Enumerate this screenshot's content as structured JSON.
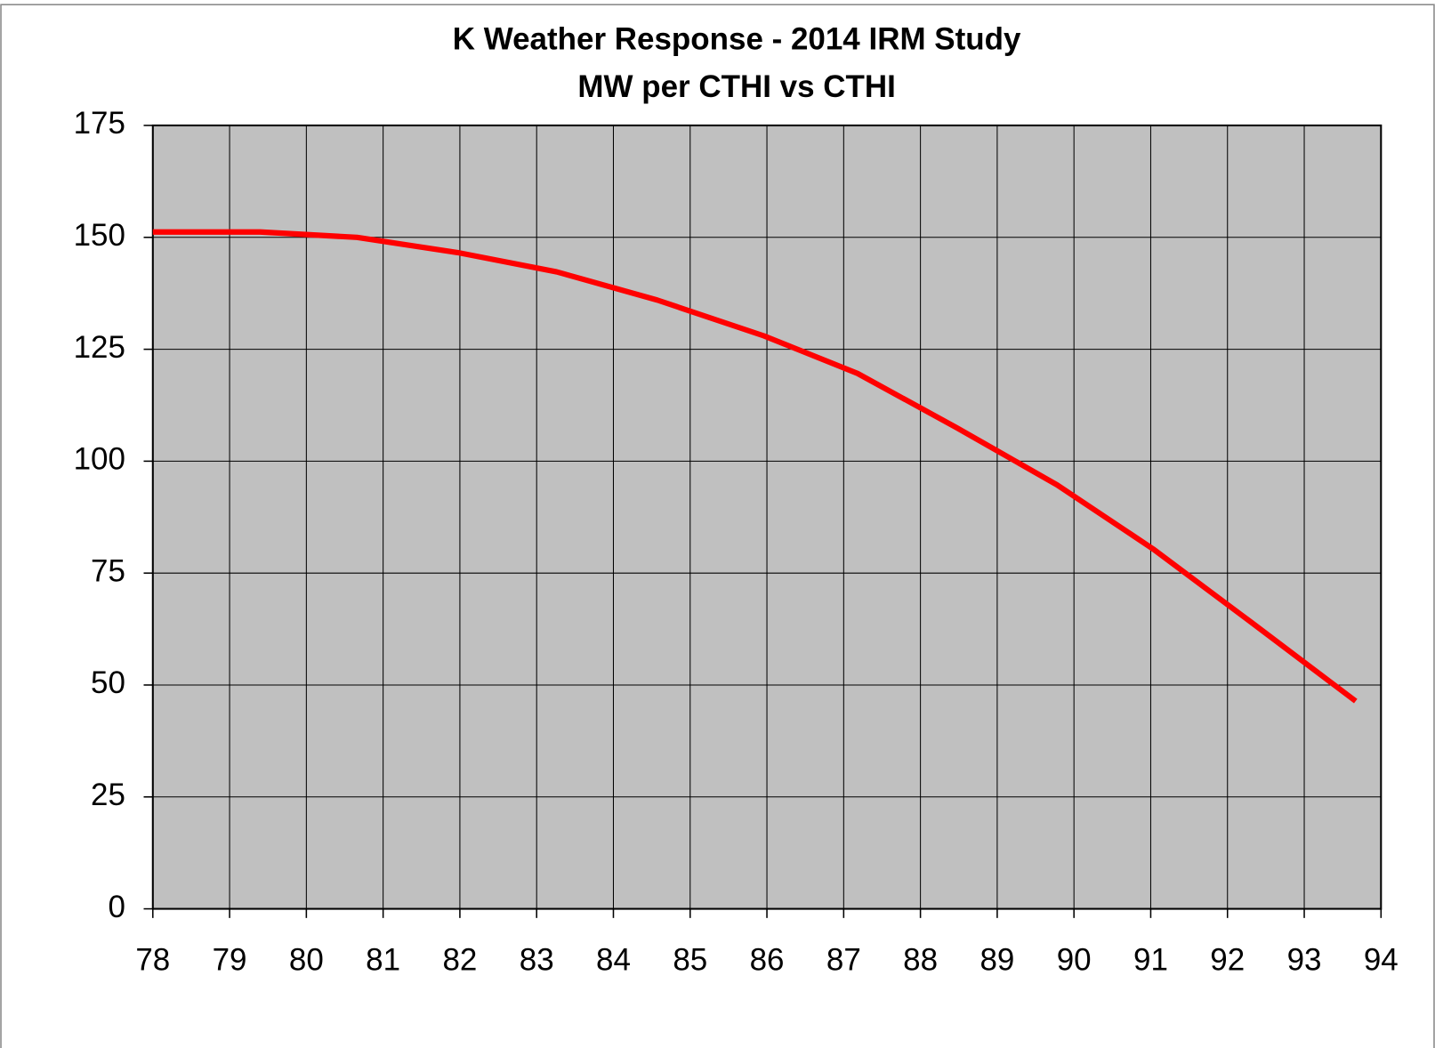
{
  "chart_data": {
    "type": "line",
    "title": "K Weather Response - 2014 IRM Study",
    "subtitle": "MW per CTHI vs CTHI",
    "x": [
      78,
      79.4,
      80.66,
      81.97,
      83.26,
      84.57,
      85.96,
      87.18,
      88.47,
      89.78,
      91.03,
      92.31,
      93.67
    ],
    "values": [
      151.2,
      151.2,
      150,
      146.6,
      142.3,
      136,
      128,
      119.6,
      107.5,
      94.7,
      80.4,
      64,
      46.4
    ],
    "color": "#ff0000",
    "xlim": [
      78,
      94
    ],
    "xticks": [
      78,
      79,
      80,
      81,
      82,
      83,
      84,
      85,
      86,
      87,
      88,
      89,
      90,
      91,
      92,
      93,
      94
    ],
    "ylim": [
      0,
      175
    ],
    "yticks": [
      0,
      25,
      50,
      75,
      100,
      125,
      150,
      175
    ],
    "grid": true
  }
}
